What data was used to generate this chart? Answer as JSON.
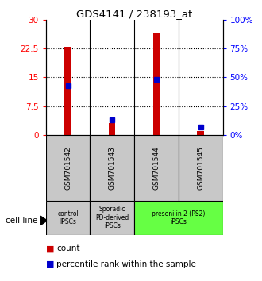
{
  "title": "GDS4141 / 238193_at",
  "samples": [
    "GSM701542",
    "GSM701543",
    "GSM701544",
    "GSM701545"
  ],
  "count_values": [
    23.0,
    3.0,
    26.5,
    1.0
  ],
  "percentile_values": [
    43,
    13,
    48,
    7
  ],
  "ylim_left": [
    0,
    30
  ],
  "ylim_right": [
    0,
    100
  ],
  "yticks_left": [
    0,
    7.5,
    15,
    22.5,
    30
  ],
  "yticks_right": [
    0,
    25,
    50,
    75,
    100
  ],
  "ytick_labels_left": [
    "0",
    "7.5",
    "15",
    "22.5",
    "30"
  ],
  "ytick_labels_right": [
    "0%",
    "25%",
    "50%",
    "75%",
    "100%"
  ],
  "groups": [
    {
      "label": "control\nIPSCs",
      "color": "#c8c8c8",
      "start": 0,
      "end": 0
    },
    {
      "label": "Sporadic\nPD-derived\niPSCs",
      "color": "#c8c8c8",
      "start": 1,
      "end": 1
    },
    {
      "label": "presenilin 2 (PS2)\niPSCs",
      "color": "#66ff44",
      "start": 2,
      "end": 3
    }
  ],
  "bar_color": "#cc0000",
  "percentile_color": "#0000cc",
  "bar_width": 0.15,
  "sample_box_color": "#c8c8c8",
  "background_color": "#ffffff",
  "legend_count_label": "count",
  "legend_percentile_label": "percentile rank within the sample"
}
